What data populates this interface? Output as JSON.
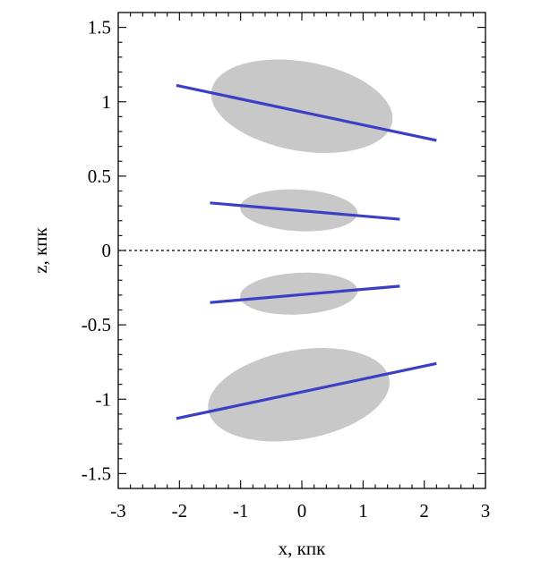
{
  "chart_data": {
    "type": "line",
    "title": "",
    "xlabel": "x, кпк",
    "ylabel": "z, кпк",
    "xlim": [
      -3,
      3
    ],
    "ylim": [
      -1.6,
      1.6
    ],
    "xticks": [
      -3,
      -2,
      -1,
      0,
      1,
      2,
      3
    ],
    "yticks": [
      -1.5,
      -1,
      -0.5,
      0,
      0.5,
      1,
      1.5
    ],
    "xtick_labels": [
      "-3",
      "-2",
      "-1",
      "0",
      "1",
      "2",
      "3"
    ],
    "ytick_labels": [
      "-1.5",
      "-1",
      "-0.5",
      "0",
      "0.5",
      "1",
      "1.5"
    ],
    "grid": false,
    "reference_line": {
      "z": 0,
      "style": "dashed",
      "color": "#000000"
    },
    "regions": [
      {
        "shape": "ellipse",
        "cx": 0.0,
        "cz": 0.97,
        "rx": 1.5,
        "rz": 0.3,
        "angle_deg": -10,
        "color": "#c8c8c8"
      },
      {
        "shape": "ellipse",
        "cx": -0.05,
        "cz": 0.27,
        "rx": 0.96,
        "rz": 0.14,
        "angle_deg": -3,
        "color": "#c8c8c8"
      },
      {
        "shape": "ellipse",
        "cx": -0.05,
        "cz": -0.29,
        "rx": 0.96,
        "rz": 0.14,
        "angle_deg": 3,
        "color": "#c8c8c8"
      },
      {
        "shape": "ellipse",
        "cx": -0.05,
        "cz": -0.97,
        "rx": 1.5,
        "rz": 0.3,
        "angle_deg": 10,
        "color": "#c8c8c8"
      }
    ],
    "series": [
      {
        "x": [
          -2.05,
          2.2
        ],
        "y": [
          1.11,
          0.74
        ],
        "color": "#3b3fc6"
      },
      {
        "x": [
          -1.5,
          1.6
        ],
        "y": [
          0.32,
          0.21
        ],
        "color": "#3b3fc6"
      },
      {
        "x": [
          -1.5,
          1.6
        ],
        "y": [
          -0.35,
          -0.24
        ],
        "color": "#3b3fc6"
      },
      {
        "x": [
          -2.05,
          2.2
        ],
        "y": [
          -1.13,
          -0.76
        ],
        "color": "#3b3fc6"
      }
    ]
  }
}
